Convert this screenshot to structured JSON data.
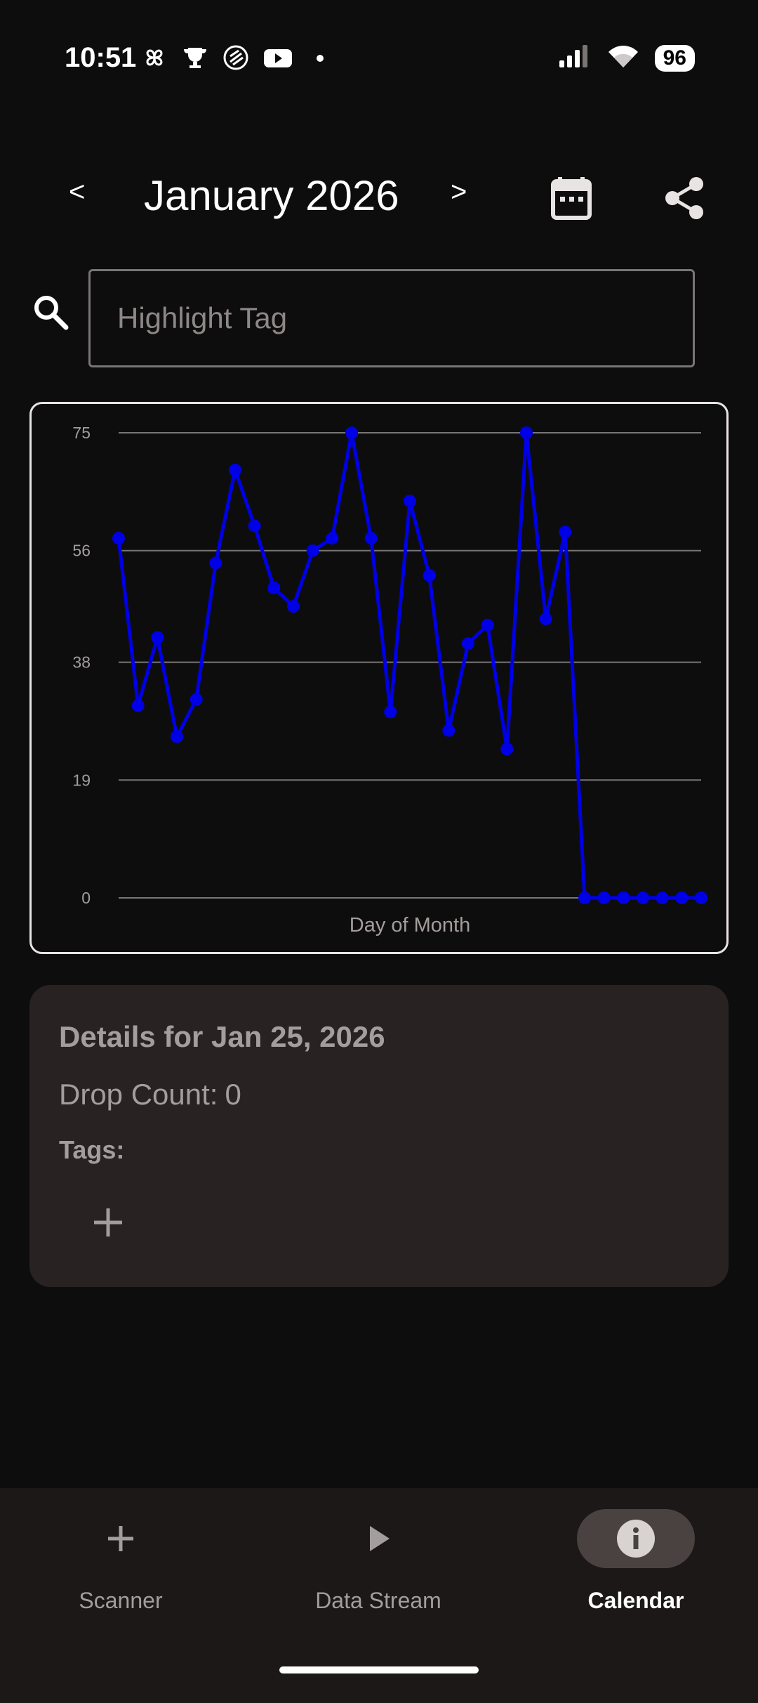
{
  "status_bar": {
    "time": "10:51",
    "battery": "96",
    "left_icons": [
      "pinwheel-icon",
      "trophy-icon",
      "shield-icon",
      "youtube-icon",
      "dot-icon"
    ],
    "right_icons": [
      "signal-icon",
      "wifi-icon",
      "battery-icon"
    ]
  },
  "header": {
    "prev_label": "<",
    "next_label": ">",
    "month_title": "January 2026",
    "icons": [
      "calendar-icon",
      "share-icon"
    ]
  },
  "search": {
    "placeholder": "Highlight Tag",
    "value": ""
  },
  "chart_data": {
    "type": "line",
    "title": "",
    "xlabel": "Day of Month",
    "ylabel": "",
    "ylim": [
      0,
      75
    ],
    "yticks": [
      "75",
      "56",
      "38",
      "19",
      "0"
    ],
    "ytick_values": [
      75,
      56,
      38,
      19,
      0
    ],
    "grid": true,
    "x": [
      1,
      2,
      3,
      4,
      5,
      6,
      7,
      8,
      9,
      10,
      11,
      12,
      13,
      14,
      15,
      16,
      17,
      18,
      19,
      20,
      21,
      22,
      23,
      24,
      25,
      26,
      27,
      28,
      29,
      30,
      31
    ],
    "series": [
      {
        "color": "#0000e6",
        "values": [
          58,
          31,
          42,
          26,
          32,
          54,
          69,
          60,
          50,
          47,
          56,
          58,
          75,
          58,
          30,
          64,
          52,
          27,
          41,
          44,
          24,
          75,
          45,
          59,
          0,
          0,
          0,
          0,
          0,
          0,
          0
        ]
      }
    ]
  },
  "details": {
    "title": "Details for Jan 25, 2026",
    "drop_count_label": "Drop Count:",
    "drop_count_value": "0",
    "tags_label": "Tags:",
    "add_icon": "plus-icon"
  },
  "bottom_nav": {
    "items": [
      {
        "label": "Scanner",
        "icon": "plus-icon",
        "active": false
      },
      {
        "label": "Data Stream",
        "icon": "play-icon",
        "active": false
      },
      {
        "label": "Calendar",
        "icon": "info-icon",
        "active": true
      }
    ]
  },
  "colors": {
    "background": "#0e0d0d",
    "series": "#0000e6",
    "card": "#282322",
    "nav_bar": "#1c1817",
    "nav_active_pill": "#4a4241"
  }
}
